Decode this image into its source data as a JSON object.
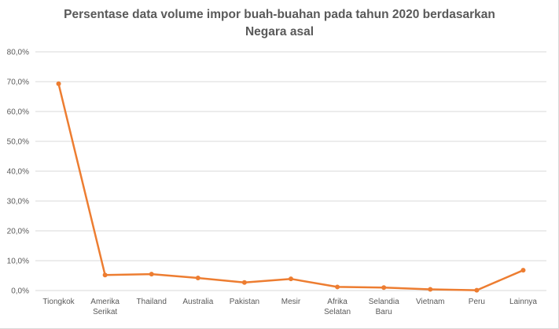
{
  "chart_data": {
    "type": "line",
    "title": "Persentase data volume impor buah-buahan pada tahun 2020 berdasarkan Negara asal",
    "title_lines": [
      "Persentase data volume impor buah-buahan pada tahun 2020 berdasarkan",
      "Negara asal"
    ],
    "categories": [
      [
        "Tiongkok"
      ],
      [
        "Amerika",
        "Serikat"
      ],
      [
        "Thailand"
      ],
      [
        "Australia"
      ],
      [
        "Pakistan"
      ],
      [
        "Mesir"
      ],
      [
        "Afrika",
        "Selatan"
      ],
      [
        "Selandia",
        "Baru"
      ],
      [
        "Vietnam"
      ],
      [
        "Peru"
      ],
      [
        "Lainnya"
      ]
    ],
    "values": [
      69.3,
      5.2,
      5.5,
      4.2,
      2.7,
      3.9,
      1.2,
      1.0,
      0.4,
      0.1,
      6.8
    ],
    "ylim": [
      0,
      80
    ],
    "yticks": [
      "0,0%",
      "10,0%",
      "20,0%",
      "30,0%",
      "40,0%",
      "50,0%",
      "60,0%",
      "70,0%",
      "80,0%"
    ],
    "xlabel": "",
    "ylabel": "",
    "grid": true,
    "colors": {
      "line": "#ED7D31",
      "grid": "#d9d9d9",
      "text": "#595959"
    }
  }
}
